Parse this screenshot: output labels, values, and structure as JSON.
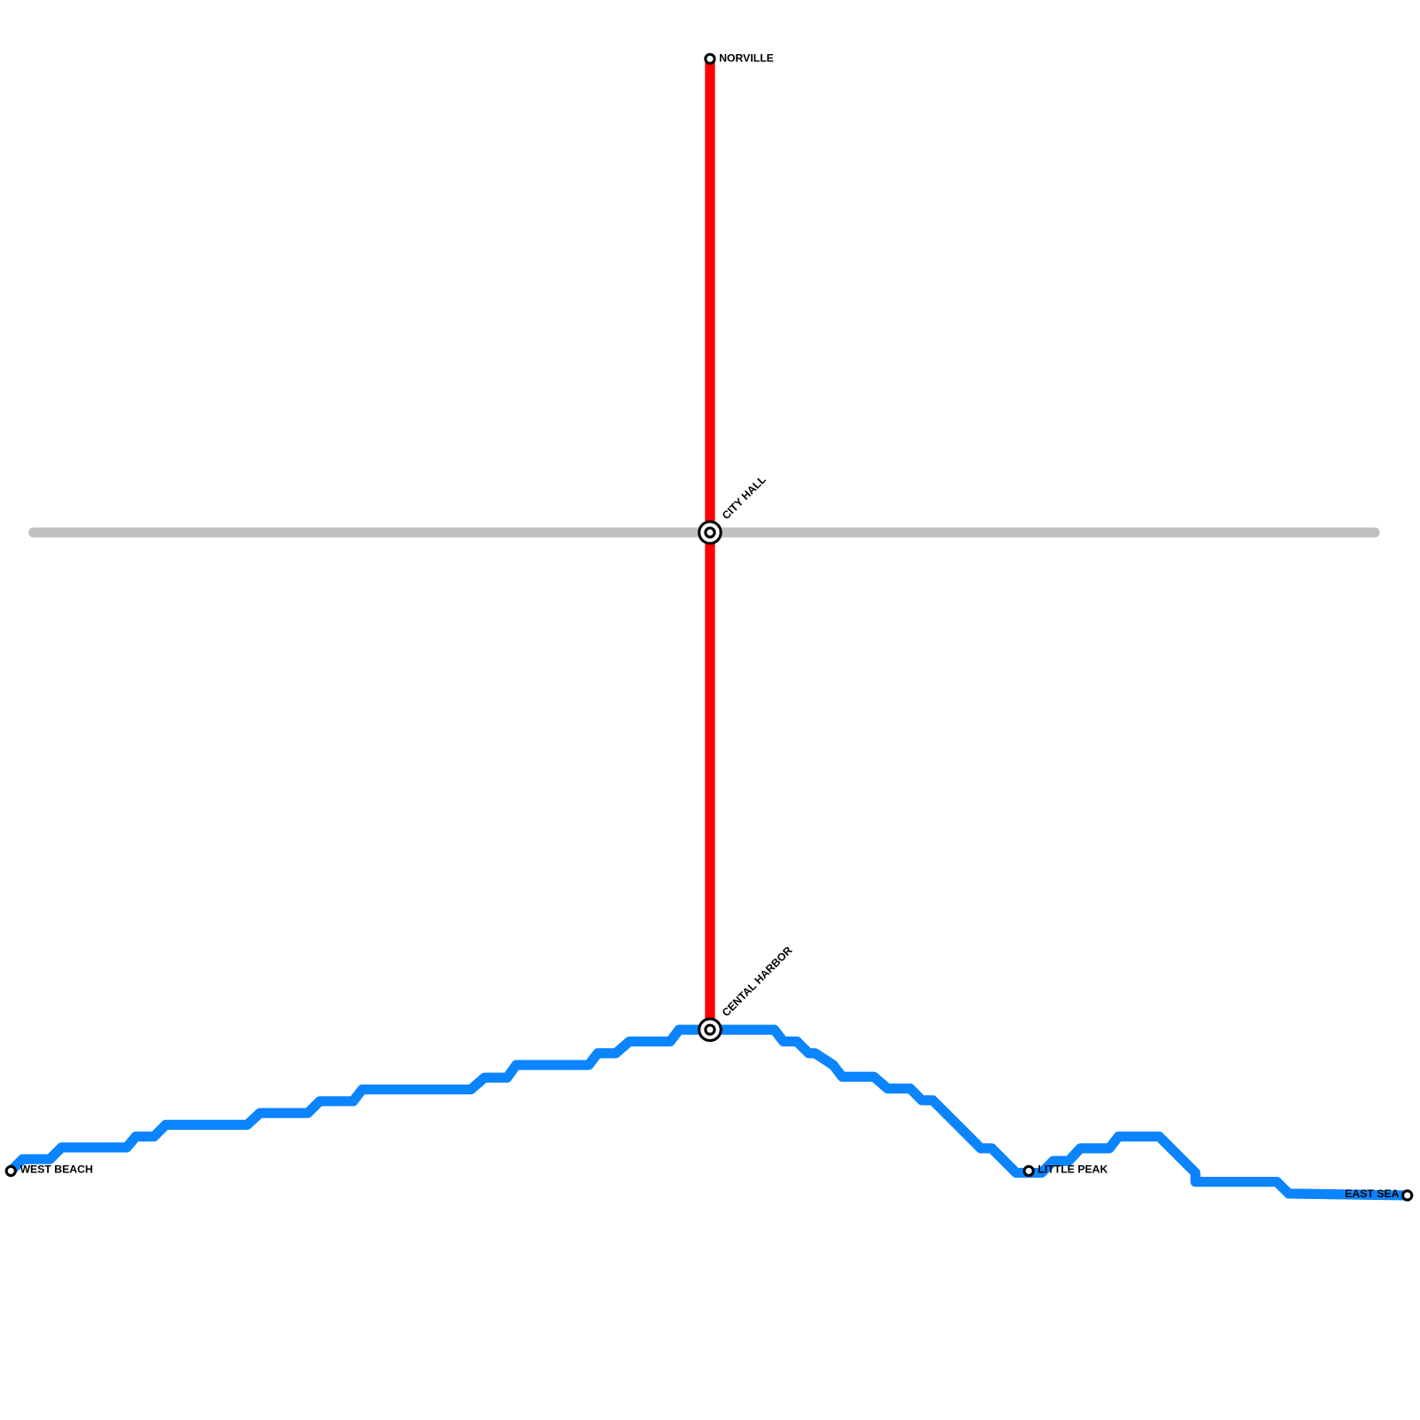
{
  "stations": [
    "NORVILLE",
    "CITY HALL",
    "CENTAL HARBOR",
    "WEST BEACH",
    "LITTLE PEAK",
    "EAST SEA"
  ]
}
